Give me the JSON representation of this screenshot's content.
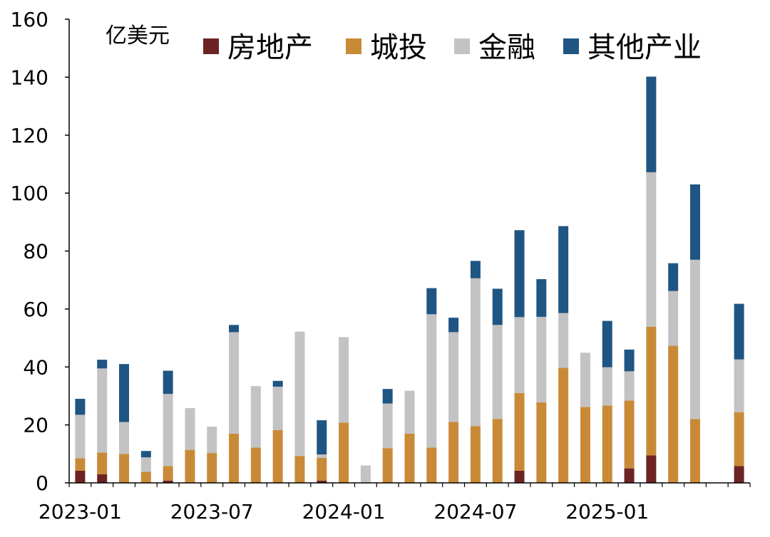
{
  "chart_data": {
    "type": "bar",
    "stacked": true,
    "unit_label": "亿美元",
    "ylim": [
      0,
      160
    ],
    "yticks": [
      0,
      20,
      40,
      60,
      80,
      100,
      120,
      140,
      160
    ],
    "x": [
      "2023-01",
      "2023-02",
      "2023-03",
      "2023-04",
      "2023-05",
      "2023-06",
      "2023-07",
      "2023-08",
      "2023-09",
      "2023-10",
      "2023-11",
      "2023-12",
      "2024-01",
      "2024-02",
      "2024-03",
      "2024-04",
      "2024-05",
      "2024-06",
      "2024-07",
      "2024-08",
      "2024-09",
      "2024-10",
      "2024-11",
      "2024-12",
      "2025-01",
      "2025-02",
      "2025-03",
      "2025-04",
      "2025-05",
      "2025-06",
      "2025-07"
    ],
    "x_tick_labels": [
      "2023-01",
      "2023-07",
      "2024-01",
      "2024-07",
      "2025-01"
    ],
    "legend_position": "top",
    "series": [
      {
        "name": "房地产",
        "color": "#6b2423",
        "values": [
          4.2,
          3.0,
          0,
          0,
          0.8,
          0,
          0,
          0,
          0,
          0,
          0,
          0.8,
          0,
          0,
          0,
          0,
          0,
          0,
          0,
          0,
          4.2,
          0,
          0,
          0,
          0,
          5.0,
          9.5,
          0,
          0,
          0,
          5.8
        ]
      },
      {
        "name": "城投",
        "color": "#c98a38",
        "values": [
          4.3,
          7.5,
          10.0,
          3.8,
          5.0,
          11.4,
          10.3,
          17.0,
          12.2,
          18.2,
          9.3,
          7.8,
          20.8,
          0,
          12.0,
          17.0,
          12.2,
          21.0,
          19.6,
          22.0,
          26.8,
          27.8,
          39.7,
          26.2,
          26.7,
          23.4,
          44.4,
          47.3,
          22.0,
          0,
          18.6
        ]
      },
      {
        "name": "金融",
        "color": "#c3c3c3",
        "values": [
          15.0,
          29.0,
          11.0,
          5.0,
          24.9,
          14.4,
          9.1,
          35.0,
          21.2,
          15.0,
          42.9,
          1.2,
          29.5,
          6.0,
          15.4,
          14.8,
          46.0,
          31.0,
          51.0,
          32.5,
          26.2,
          29.5,
          18.9,
          18.7,
          13.2,
          10.1,
          53.3,
          18.9,
          55.0,
          0,
          18.2
        ]
      },
      {
        "name": "其他产业",
        "color": "#1f5582",
        "values": [
          5.5,
          3.0,
          20.0,
          2.2,
          8.0,
          0,
          0,
          2.5,
          0,
          2.0,
          0,
          11.8,
          0,
          0,
          5.0,
          0,
          9.0,
          5.0,
          6.0,
          12.5,
          30.0,
          13.0,
          30.0,
          0,
          16.0,
          7.5,
          33.0,
          9.6,
          26.0,
          0,
          19.2
        ]
      }
    ]
  }
}
